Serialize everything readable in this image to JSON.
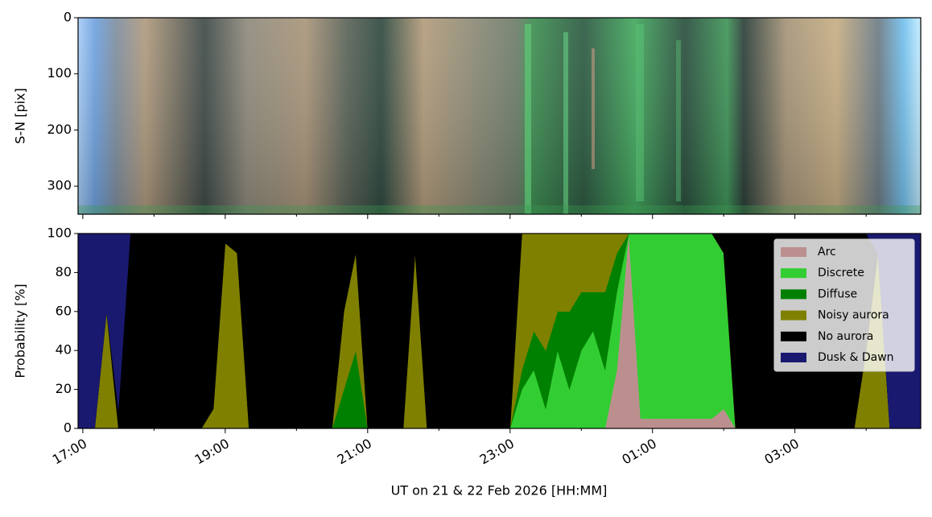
{
  "chart_data": [
    {
      "type": "keogram",
      "ylabel": "S-N [pix]",
      "ylim": [
        350,
        0
      ],
      "yticks": [
        0,
        100,
        200,
        300
      ]
    },
    {
      "type": "stacked_area",
      "xlabel": "UT on 21 & 22 Feb 2026 [HH:MM]",
      "ylabel": "Probability [%]",
      "xlim": [
        "16:56",
        "04:46"
      ],
      "xticks": [
        "17:00",
        "19:00",
        "21:00",
        "23:00",
        "01:00",
        "03:00"
      ],
      "xminorticks": [
        "18:00",
        "20:00",
        "22:00",
        "00:00",
        "02:00",
        "04:00"
      ],
      "ylim": [
        0,
        100
      ],
      "yticks": [
        0,
        20,
        40,
        60,
        80,
        100
      ],
      "legend": "upper right",
      "x": [
        "16:56",
        "17:00",
        "17:10",
        "17:20",
        "17:30",
        "17:40",
        "17:50",
        "18:00",
        "18:10",
        "18:20",
        "18:30",
        "18:40",
        "18:50",
        "19:00",
        "19:10",
        "19:20",
        "19:30",
        "19:40",
        "19:50",
        "20:00",
        "20:10",
        "20:20",
        "20:30",
        "20:40",
        "20:50",
        "21:00",
        "21:10",
        "21:20",
        "21:30",
        "21:40",
        "21:50",
        "22:00",
        "22:10",
        "22:20",
        "22:30",
        "22:40",
        "22:50",
        "23:00",
        "23:10",
        "23:20",
        "23:30",
        "23:40",
        "23:50",
        "00:00",
        "00:10",
        "00:20",
        "00:30",
        "00:40",
        "00:50",
        "01:00",
        "01:10",
        "01:20",
        "01:30",
        "01:40",
        "01:50",
        "02:00",
        "02:10",
        "02:20",
        "02:30",
        "02:40",
        "02:50",
        "03:00",
        "03:10",
        "03:20",
        "03:30",
        "03:40",
        "03:50",
        "04:00",
        "04:10",
        "04:20",
        "04:30",
        "04:40",
        "04:46"
      ],
      "series": [
        {
          "name": "Arc",
          "color": "#bc8f8f",
          "values": [
            0,
            0,
            0,
            0,
            0,
            0,
            0,
            0,
            0,
            0,
            0,
            0,
            0,
            0,
            0,
            0,
            0,
            0,
            0,
            0,
            0,
            0,
            0,
            0,
            0,
            0,
            0,
            0,
            0,
            0,
            0,
            0,
            0,
            0,
            0,
            0,
            0,
            0,
            0,
            0,
            0,
            0,
            0,
            0,
            0,
            0,
            30,
            100,
            5,
            5,
            5,
            5,
            5,
            5,
            5,
            10,
            0,
            0,
            0,
            0,
            0,
            0,
            0,
            0,
            0,
            0,
            0,
            0,
            0,
            0,
            0,
            0,
            0
          ]
        },
        {
          "name": "Discrete",
          "color": "#32cd32",
          "values": [
            0,
            0,
            0,
            0,
            0,
            0,
            0,
            0,
            0,
            0,
            0,
            0,
            0,
            0,
            0,
            0,
            0,
            0,
            0,
            0,
            0,
            0,
            0,
            0,
            0,
            0,
            0,
            0,
            0,
            0,
            0,
            0,
            0,
            0,
            0,
            0,
            0,
            0,
            20,
            30,
            10,
            40,
            20,
            40,
            50,
            30,
            40,
            0,
            95,
            95,
            95,
            95,
            95,
            95,
            95,
            80,
            0,
            0,
            0,
            0,
            0,
            0,
            0,
            0,
            0,
            0,
            0,
            0,
            0,
            0,
            0,
            0,
            0
          ]
        },
        {
          "name": "Diffuse",
          "color": "#008000",
          "values": [
            0,
            0,
            0,
            0,
            0,
            0,
            0,
            0,
            0,
            0,
            0,
            0,
            0,
            0,
            0,
            0,
            0,
            0,
            0,
            0,
            0,
            0,
            0,
            20,
            40,
            0,
            0,
            0,
            0,
            0,
            0,
            0,
            0,
            0,
            0,
            0,
            0,
            0,
            10,
            20,
            30,
            20,
            40,
            30,
            20,
            40,
            20,
            0,
            0,
            0,
            0,
            0,
            0,
            0,
            0,
            0,
            0,
            0,
            0,
            0,
            0,
            0,
            0,
            0,
            0,
            0,
            0,
            0,
            0,
            0,
            0,
            0,
            0
          ]
        },
        {
          "name": "Noisy aurora",
          "color": "#808000",
          "values": [
            0,
            0,
            0,
            60,
            0,
            0,
            0,
            0,
            0,
            0,
            0,
            0,
            10,
            95,
            90,
            0,
            0,
            0,
            0,
            0,
            0,
            0,
            0,
            40,
            50,
            0,
            0,
            0,
            0,
            90,
            0,
            0,
            0,
            0,
            0,
            0,
            0,
            0,
            70,
            50,
            60,
            40,
            40,
            30,
            30,
            30,
            10,
            0,
            0,
            0,
            0,
            0,
            0,
            0,
            0,
            0,
            0,
            0,
            0,
            0,
            0,
            0,
            0,
            0,
            0,
            0,
            0,
            40,
            90,
            0,
            0,
            0,
            0
          ]
        },
        {
          "name": "No aurora",
          "color": "#000000",
          "values": [
            0,
            0,
            0,
            0,
            10,
            100,
            100,
            100,
            100,
            100,
            100,
            100,
            90,
            5,
            10,
            100,
            100,
            100,
            100,
            100,
            100,
            100,
            100,
            40,
            10,
            100,
            100,
            100,
            100,
            10,
            100,
            100,
            100,
            100,
            100,
            100,
            100,
            100,
            0,
            0,
            0,
            0,
            0,
            0,
            0,
            0,
            0,
            0,
            0,
            0,
            0,
            0,
            0,
            0,
            0,
            10,
            100,
            100,
            100,
            100,
            100,
            100,
            100,
            100,
            100,
            100,
            100,
            60,
            0,
            0,
            0,
            0,
            0
          ]
        },
        {
          "name": "Dusk & Dawn",
          "color": "#191970",
          "values": [
            100,
            100,
            100,
            40,
            90,
            0,
            0,
            0,
            0,
            0,
            0,
            0,
            0,
            0,
            0,
            0,
            0,
            0,
            0,
            0,
            0,
            0,
            0,
            0,
            0,
            0,
            0,
            0,
            0,
            0,
            0,
            0,
            0,
            0,
            0,
            0,
            0,
            0,
            0,
            0,
            0,
            0,
            0,
            0,
            0,
            0,
            0,
            0,
            0,
            0,
            0,
            0,
            0,
            0,
            0,
            0,
            0,
            0,
            0,
            0,
            0,
            0,
            0,
            0,
            0,
            0,
            0,
            0,
            10,
            100,
            100,
            100,
            100
          ]
        }
      ]
    }
  ]
}
